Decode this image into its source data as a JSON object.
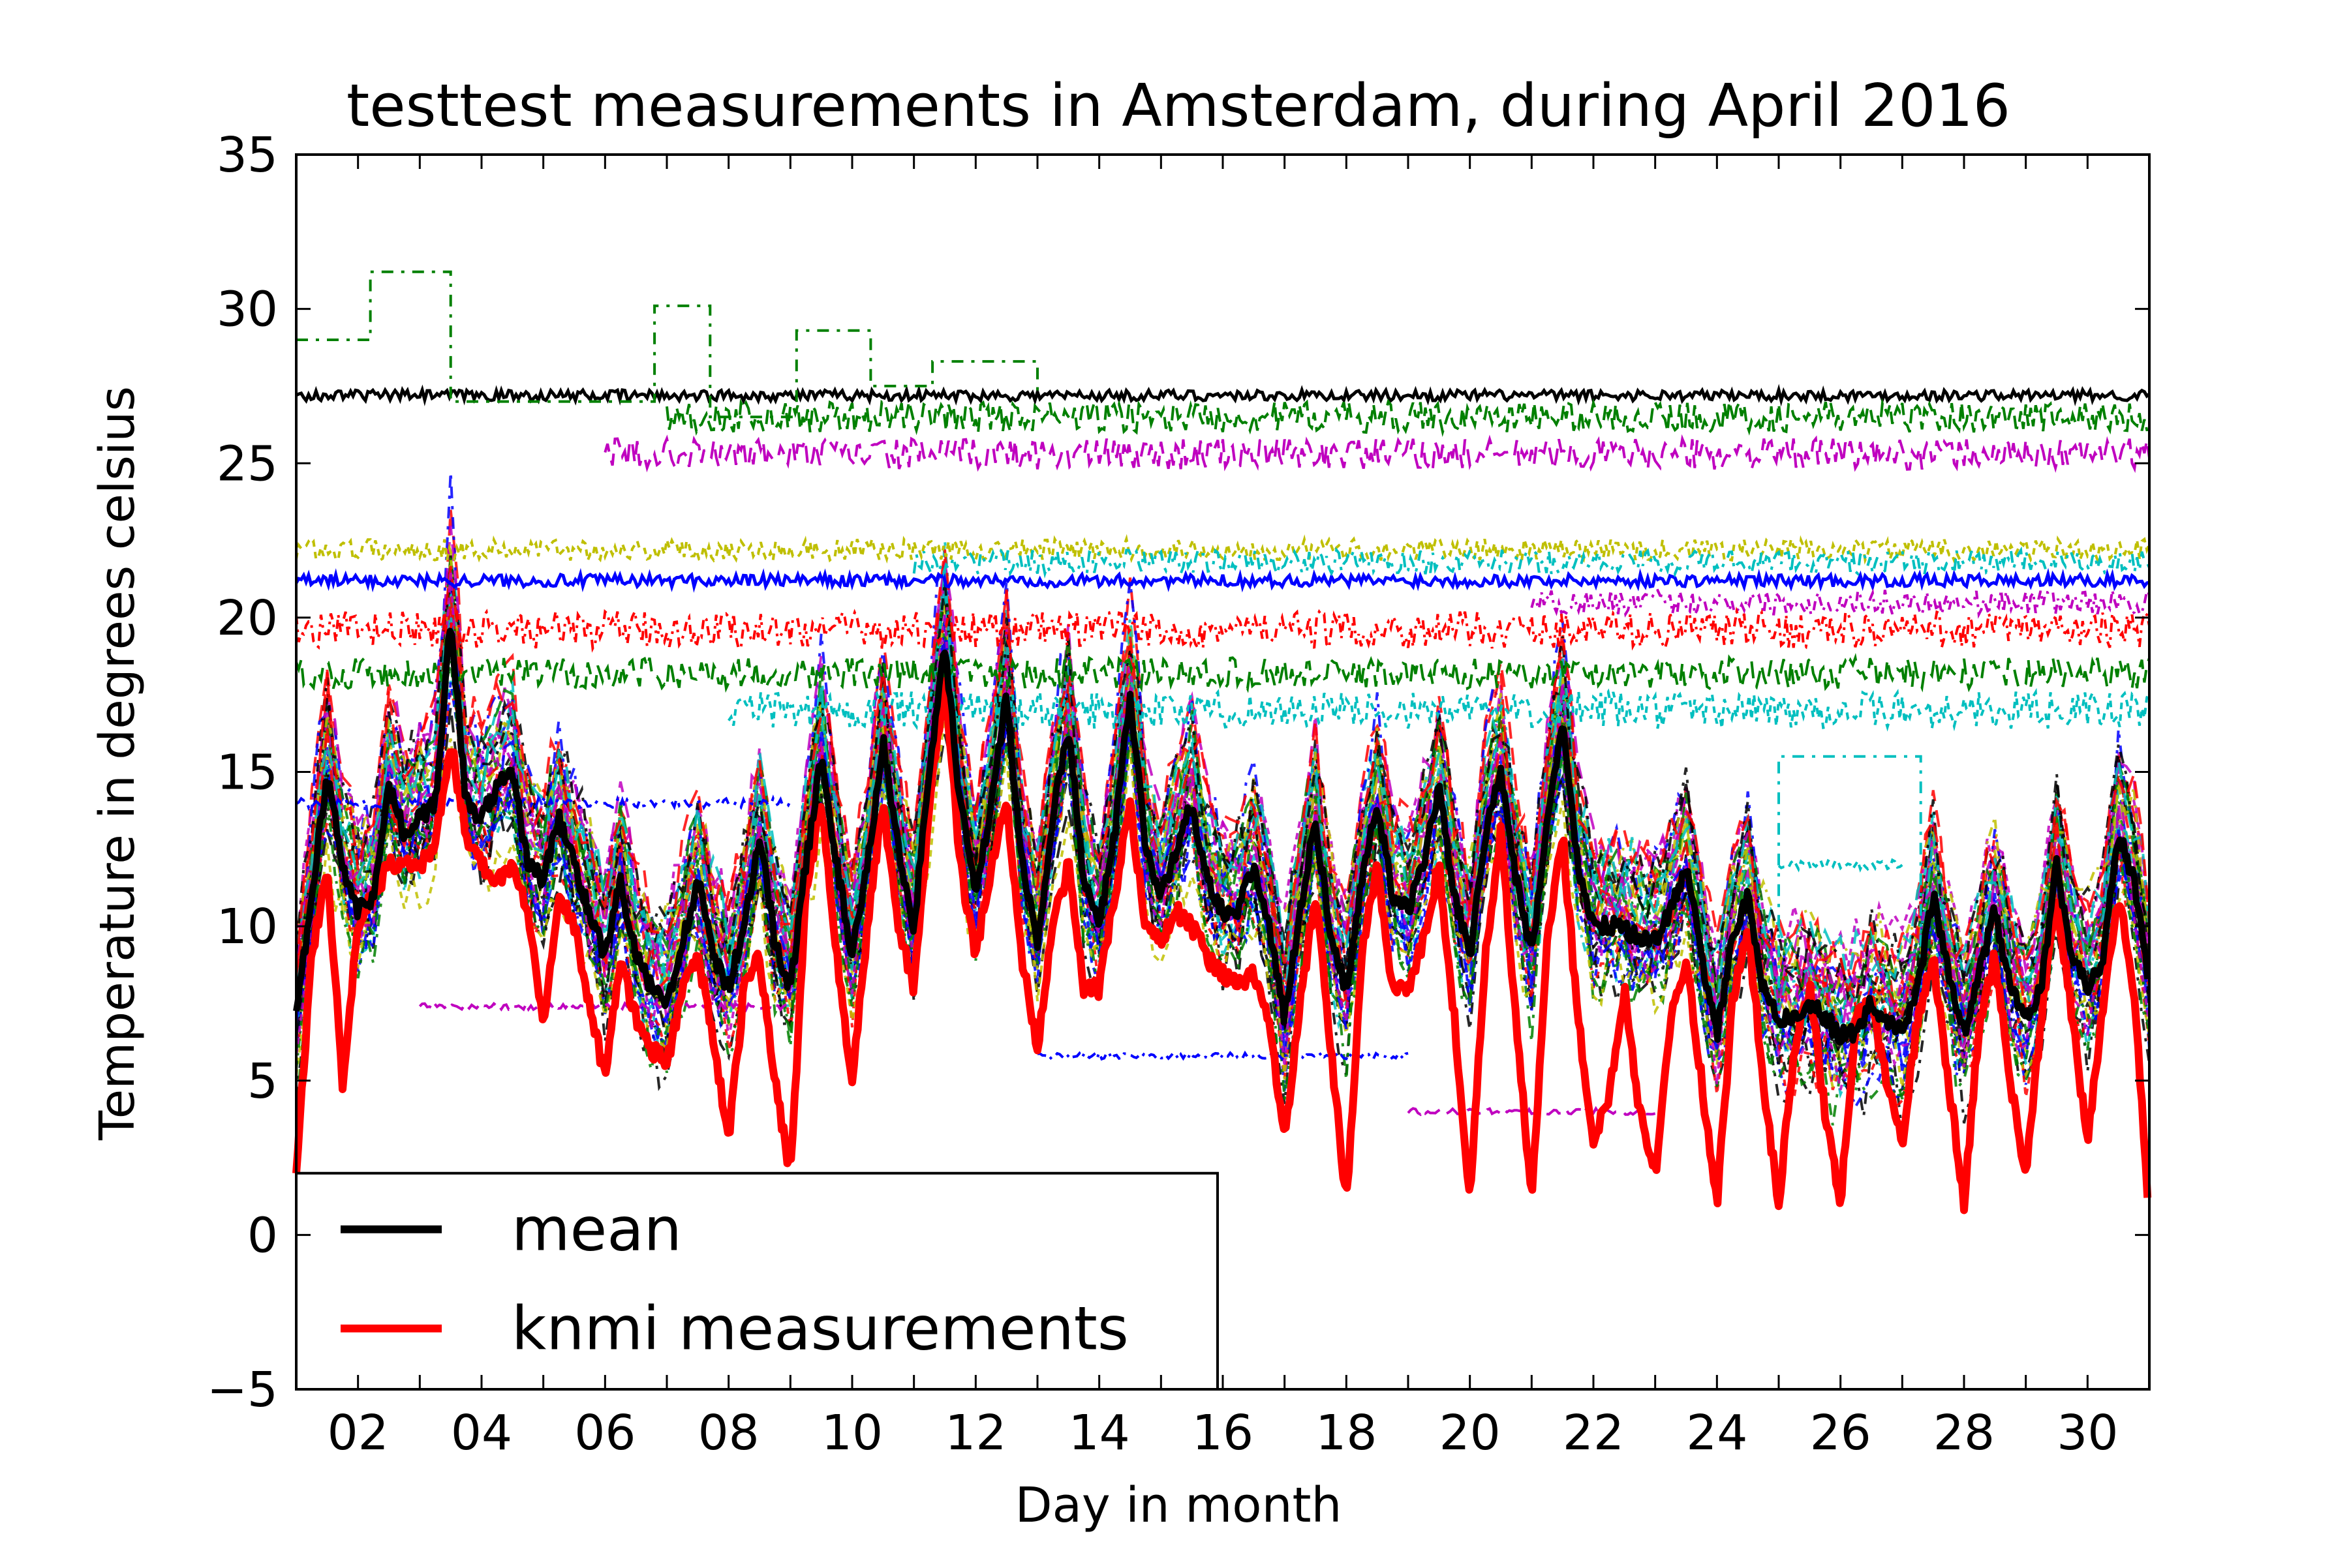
{
  "chart_data": {
    "type": "line",
    "title": "testtest measurements in Amsterdam, during April 2016",
    "xlabel": "Day in month",
    "ylabel": "Temperature in degrees celsius",
    "xlim": [
      1,
      31
    ],
    "ylim": [
      -5,
      35
    ],
    "xticks": [
      2,
      4,
      6,
      8,
      10,
      12,
      14,
      16,
      18,
      20,
      22,
      24,
      26,
      28,
      30
    ],
    "xtick_labels": [
      "02",
      "04",
      "06",
      "08",
      "10",
      "12",
      "14",
      "16",
      "18",
      "20",
      "22",
      "24",
      "26",
      "28",
      "30"
    ],
    "yticks": [
      -5,
      0,
      5,
      10,
      15,
      20,
      25,
      30,
      35
    ],
    "ytick_labels": [
      "−5",
      "0",
      "5",
      "10",
      "15",
      "20",
      "25",
      "30",
      "35"
    ],
    "grid": false,
    "legend": {
      "placement": "lower-left",
      "entries": [
        "mean",
        "knmi measurements"
      ]
    },
    "sensor_colors": [
      "#000000",
      "#0000ff",
      "#008000",
      "#ff0000",
      "#bf00bf",
      "#00bfbf",
      "#bfbf00"
    ],
    "series": [
      {
        "name": "mean",
        "color": "#000000",
        "x": [
          1.0,
          1.25,
          1.5,
          1.75,
          2.0,
          2.25,
          2.5,
          2.75,
          3.0,
          3.25,
          3.5,
          3.75,
          4.0,
          4.25,
          4.5,
          4.75,
          5.0,
          5.25,
          5.5,
          5.75,
          6.0,
          6.25,
          6.5,
          6.75,
          7.0,
          7.25,
          7.5,
          7.75,
          8.0,
          8.25,
          8.5,
          8.75,
          9.0,
          9.25,
          9.5,
          9.75,
          10.0,
          10.25,
          10.5,
          10.75,
          11.0,
          11.25,
          11.5,
          11.75,
          12.0,
          12.25,
          12.5,
          12.75,
          13.0,
          13.25,
          13.5,
          13.75,
          14.0,
          14.25,
          14.5,
          14.75,
          15.0,
          15.25,
          15.5,
          15.75,
          16.0,
          16.25,
          16.5,
          16.75,
          17.0,
          17.25,
          17.5,
          17.75,
          18.0,
          18.25,
          18.5,
          18.75,
          19.0,
          19.25,
          19.5,
          19.75,
          20.0,
          20.25,
          20.5,
          20.75,
          21.0,
          21.25,
          21.5,
          21.75,
          22.0,
          22.25,
          22.5,
          22.75,
          23.0,
          23.25,
          23.5,
          23.75,
          24.0,
          24.25,
          24.5,
          24.75,
          25.0,
          25.25,
          25.5,
          25.75,
          26.0,
          26.25,
          26.5,
          26.75,
          27.0,
          27.25,
          27.5,
          27.75,
          28.0,
          28.25,
          28.5,
          28.75,
          29.0,
          29.25,
          29.5,
          29.75,
          30.0,
          30.25,
          30.5,
          30.75,
          31.0
        ],
        "y": [
          7.0,
          11.0,
          15.0,
          12.0,
          10.5,
          11.0,
          14.5,
          13.0,
          13.5,
          14.0,
          20.0,
          14.0,
          13.5,
          14.5,
          15.0,
          12.0,
          11.5,
          13.5,
          12.0,
          10.5,
          9.0,
          11.5,
          9.0,
          8.0,
          7.5,
          9.5,
          11.5,
          9.0,
          8.0,
          10.0,
          13.0,
          9.5,
          8.0,
          12.0,
          15.5,
          12.0,
          9.0,
          12.0,
          16.0,
          12.5,
          10.0,
          15.0,
          19.0,
          14.0,
          11.0,
          14.0,
          17.5,
          12.0,
          9.5,
          13.5,
          16.5,
          11.5,
          10.0,
          13.0,
          17.5,
          12.5,
          11.0,
          12.5,
          14.0,
          11.5,
          10.5,
          10.5,
          12.0,
          10.0,
          7.0,
          10.5,
          13.5,
          9.5,
          8.0,
          11.5,
          14.0,
          11.0,
          10.5,
          12.0,
          14.5,
          11.0,
          9.0,
          13.0,
          15.0,
          11.5,
          9.0,
          13.5,
          16.5,
          12.0,
          10.0,
          10.0,
          10.0,
          9.5,
          9.5,
          10.5,
          12.0,
          9.0,
          6.5,
          9.5,
          11.0,
          8.0,
          7.0,
          7.0,
          7.5,
          7.0,
          6.5,
          6.5,
          7.5,
          7.0,
          6.5,
          8.0,
          11.0,
          8.5,
          6.5,
          8.5,
          10.5,
          8.0,
          7.0,
          8.0,
          12.0,
          9.0,
          8.0,
          9.0,
          13.0,
          11.5,
          8.0
        ]
      },
      {
        "name": "knmi measurements",
        "color": "#ff0000",
        "x": [
          1.0,
          1.25,
          1.5,
          1.75,
          2.0,
          2.25,
          2.5,
          2.75,
          3.0,
          3.25,
          3.5,
          3.75,
          4.0,
          4.25,
          4.5,
          4.75,
          5.0,
          5.25,
          5.5,
          5.75,
          6.0,
          6.25,
          6.5,
          6.75,
          7.0,
          7.25,
          7.5,
          7.75,
          8.0,
          8.25,
          8.5,
          8.75,
          9.0,
          9.25,
          9.5,
          9.75,
          10.0,
          10.25,
          10.5,
          10.75,
          11.0,
          11.25,
          11.5,
          11.75,
          12.0,
          12.25,
          12.5,
          12.75,
          13.0,
          13.25,
          13.5,
          13.75,
          14.0,
          14.25,
          14.5,
          14.75,
          15.0,
          15.25,
          15.5,
          15.75,
          16.0,
          16.25,
          16.5,
          16.75,
          17.0,
          17.25,
          17.5,
          17.75,
          18.0,
          18.25,
          18.5,
          18.75,
          19.0,
          19.25,
          19.5,
          19.75,
          20.0,
          20.25,
          20.5,
          20.75,
          21.0,
          21.25,
          21.5,
          21.75,
          22.0,
          22.25,
          22.5,
          22.75,
          23.0,
          23.25,
          23.5,
          23.75,
          24.0,
          24.25,
          24.5,
          24.75,
          25.0,
          25.25,
          25.5,
          25.75,
          26.0,
          26.25,
          26.5,
          26.75,
          27.0,
          27.25,
          27.5,
          27.75,
          28.0,
          28.25,
          28.5,
          28.75,
          29.0,
          29.25,
          29.5,
          29.75,
          30.0,
          30.25,
          30.5,
          30.75,
          31.0
        ],
        "y": [
          2.0,
          9.0,
          12.0,
          5.0,
          10.0,
          11.0,
          12.0,
          12.0,
          12.0,
          12.5,
          16.0,
          13.0,
          12.0,
          11.5,
          12.0,
          10.5,
          7.0,
          11.0,
          10.0,
          7.5,
          5.0,
          9.0,
          7.0,
          6.0,
          5.5,
          8.0,
          9.0,
          6.5,
          3.0,
          8.0,
          9.0,
          5.0,
          2.0,
          11.0,
          14.0,
          9.0,
          5.0,
          10.0,
          14.0,
          10.0,
          8.0,
          14.0,
          18.0,
          12.0,
          9.0,
          12.0,
          14.0,
          9.0,
          6.0,
          10.0,
          12.0,
          8.0,
          8.0,
          11.0,
          14.0,
          10.0,
          9.5,
          10.5,
          10.0,
          9.0,
          8.5,
          8.0,
          8.5,
          7.0,
          3.0,
          7.5,
          11.0,
          6.0,
          1.0,
          9.0,
          12.0,
          8.0,
          8.0,
          9.5,
          12.0,
          7.0,
          1.0,
          9.0,
          13.0,
          7.0,
          1.0,
          9.5,
          13.0,
          7.0,
          3.0,
          4.5,
          8.0,
          4.0,
          2.0,
          7.0,
          9.0,
          5.0,
          1.0,
          7.5,
          10.0,
          5.0,
          1.0,
          6.0,
          8.0,
          4.0,
          1.0,
          7.0,
          7.5,
          5.0,
          3.0,
          7.0,
          9.0,
          5.0,
          1.0,
          7.0,
          9.0,
          5.0,
          2.0,
          7.0,
          11.0,
          7.0,
          3.0,
          7.5,
          11.0,
          8.0,
          0.5
        ]
      }
    ]
  }
}
